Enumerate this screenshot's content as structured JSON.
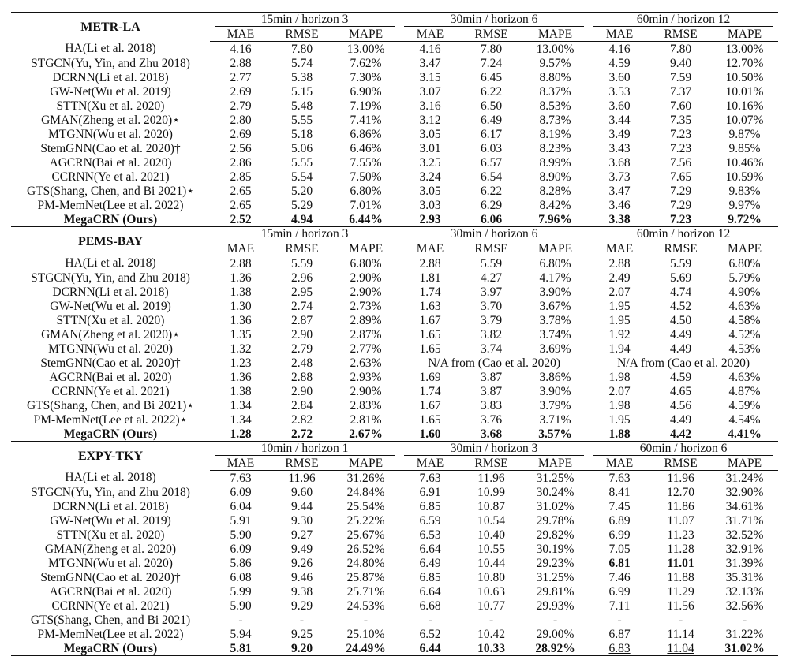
{
  "columns": [
    "MAE",
    "RMSE",
    "MAPE"
  ],
  "sections": [
    {
      "dataset": "METR-LA",
      "horizons": [
        "15min / horizon 3",
        "30min / horizon 6",
        "60min / horizon 12"
      ],
      "rows": [
        {
          "method": "HA(Li et al. 2018)",
          "values": [
            "4.16",
            "7.80",
            "13.00%",
            "4.16",
            "7.80",
            "13.00%",
            "4.16",
            "7.80",
            "13.00%"
          ]
        },
        {
          "method": "STGCN(Yu, Yin, and Zhu 2018)",
          "values": [
            "2.88",
            "5.74",
            "7.62%",
            "3.47",
            "7.24",
            "9.57%",
            "4.59",
            "9.40",
            "12.70%"
          ]
        },
        {
          "method": "DCRNN(Li et al. 2018)",
          "values": [
            "2.77",
            "5.38",
            "7.30%",
            "3.15",
            "6.45",
            "8.80%",
            "3.60",
            "7.59",
            "10.50%"
          ]
        },
        {
          "method": "GW-Net(Wu et al. 2019)",
          "values": [
            "2.69",
            "5.15",
            "6.90%",
            "3.07",
            "6.22",
            "8.37%",
            "3.53",
            "7.37",
            "10.01%"
          ]
        },
        {
          "method": "STTN(Xu et al. 2020)",
          "values": [
            "2.79",
            "5.48",
            "7.19%",
            "3.16",
            "6.50",
            "8.53%",
            "3.60",
            "7.60",
            "10.16%"
          ]
        },
        {
          "method": "GMAN(Zheng et al. 2020)⋆",
          "values": [
            "2.80",
            "5.55",
            "7.41%",
            "3.12",
            "6.49",
            "8.73%",
            "3.44",
            "7.35",
            "10.07%"
          ]
        },
        {
          "method": "MTGNN(Wu et al. 2020)",
          "values": [
            "2.69",
            "5.18",
            "6.86%",
            "3.05",
            "6.17",
            "8.19%",
            "3.49",
            "7.23",
            "9.87%"
          ]
        },
        {
          "method": "StemGNN(Cao et al. 2020)†",
          "values": [
            "2.56",
            "5.06",
            "6.46%",
            "3.01",
            "6.03",
            "8.23%",
            "3.43",
            "7.23",
            "9.85%"
          ]
        },
        {
          "method": "AGCRN(Bai et al. 2020)",
          "values": [
            "2.86",
            "5.55",
            "7.55%",
            "3.25",
            "6.57",
            "8.99%",
            "3.68",
            "7.56",
            "10.46%"
          ]
        },
        {
          "method": "CCRNN(Ye et al. 2021)",
          "values": [
            "2.85",
            "5.54",
            "7.50%",
            "3.24",
            "6.54",
            "8.90%",
            "3.73",
            "7.65",
            "10.59%"
          ]
        },
        {
          "method": "GTS(Shang, Chen, and Bi 2021)⋆",
          "values": [
            "2.65",
            "5.20",
            "6.80%",
            "3.05",
            "6.22",
            "8.28%",
            "3.47",
            "7.29",
            "9.83%"
          ]
        },
        {
          "method": "PM-MemNet(Lee et al. 2022)",
          "values": [
            "2.65",
            "5.29",
            "7.01%",
            "3.03",
            "6.29",
            "8.42%",
            "3.46",
            "7.29",
            "9.97%"
          ]
        },
        {
          "method": "MegaCRN (Ours)",
          "values": [
            "2.52",
            "4.94",
            "6.44%",
            "2.93",
            "6.06",
            "7.96%",
            "3.38",
            "7.23",
            "9.72%"
          ]
        }
      ]
    },
    {
      "dataset": "PEMS-BAY",
      "horizons": [
        "15min / horizon 3",
        "30min / horizon 6",
        "60min / horizon 12"
      ],
      "rows": [
        {
          "method": "HA(Li et al. 2018)",
          "values": [
            "2.88",
            "5.59",
            "6.80%",
            "2.88",
            "5.59",
            "6.80%",
            "2.88",
            "5.59",
            "6.80%"
          ]
        },
        {
          "method": "STGCN(Yu, Yin, and Zhu 2018)",
          "values": [
            "1.36",
            "2.96",
            "2.90%",
            "1.81",
            "4.27",
            "4.17%",
            "2.49",
            "5.69",
            "5.79%"
          ]
        },
        {
          "method": "DCRNN(Li et al. 2018)",
          "values": [
            "1.38",
            "2.95",
            "2.90%",
            "1.74",
            "3.97",
            "3.90%",
            "2.07",
            "4.74",
            "4.90%"
          ]
        },
        {
          "method": "GW-Net(Wu et al. 2019)",
          "values": [
            "1.30",
            "2.74",
            "2.73%",
            "1.63",
            "3.70",
            "3.67%",
            "1.95",
            "4.52",
            "4.63%"
          ]
        },
        {
          "method": "STTN(Xu et al. 2020)",
          "values": [
            "1.36",
            "2.87",
            "2.89%",
            "1.67",
            "3.79",
            "3.78%",
            "1.95",
            "4.50",
            "4.58%"
          ]
        },
        {
          "method": "GMAN(Zheng et al. 2020)⋆",
          "values": [
            "1.35",
            "2.90",
            "2.87%",
            "1.65",
            "3.82",
            "3.74%",
            "1.92",
            "4.49",
            "4.52%"
          ]
        },
        {
          "method": "MTGNN(Wu et al. 2020)",
          "values": [
            "1.32",
            "2.79",
            "2.77%",
            "1.65",
            "3.74",
            "3.69%",
            "1.94",
            "4.49",
            "4.53%"
          ]
        },
        {
          "method": "StemGNN(Cao et al. 2020)†",
          "values": [
            "1.23",
            "2.48",
            "2.63%"
          ],
          "na": [
            "N/A from (Cao et al. 2020)",
            "N/A from (Cao et al. 2020)"
          ]
        },
        {
          "method": "AGCRN(Bai et al. 2020)",
          "values": [
            "1.36",
            "2.88",
            "2.93%",
            "1.69",
            "3.87",
            "3.86%",
            "1.98",
            "4.59",
            "4.63%"
          ]
        },
        {
          "method": "CCRNN(Ye et al. 2021)",
          "values": [
            "1.38",
            "2.90",
            "2.90%",
            "1.74",
            "3.87",
            "3.90%",
            "2.07",
            "4.65",
            "4.87%"
          ]
        },
        {
          "method": "GTS(Shang, Chen, and Bi 2021)⋆",
          "values": [
            "1.34",
            "2.84",
            "2.83%",
            "1.67",
            "3.83",
            "3.79%",
            "1.98",
            "4.56",
            "4.59%"
          ]
        },
        {
          "method": "PM-MemNet(Lee et al. 2022)⋆",
          "values": [
            "1.34",
            "2.82",
            "2.81%",
            "1.65",
            "3.76",
            "3.71%",
            "1.95",
            "4.49",
            "4.54%"
          ]
        },
        {
          "method": "MegaCRN (Ours)",
          "values": [
            "1.28",
            "2.72",
            "2.67%",
            "1.60",
            "3.68",
            "3.57%",
            "1.88",
            "4.42",
            "4.41%"
          ]
        }
      ]
    },
    {
      "dataset": "EXPY-TKY",
      "horizons": [
        "10min / horizon 1",
        "30min / horizon 3",
        "60min / horizon 6"
      ],
      "rows": [
        {
          "method": "HA(Li et al. 2018)",
          "values": [
            "7.63",
            "11.96",
            "31.26%",
            "7.63",
            "11.96",
            "31.25%",
            "7.63",
            "11.96",
            "31.24%"
          ]
        },
        {
          "method": "STGCN(Yu, Yin, and Zhu 2018)",
          "values": [
            "6.09",
            "9.60",
            "24.84%",
            "6.91",
            "10.99",
            "30.24%",
            "8.41",
            "12.70",
            "32.90%"
          ]
        },
        {
          "method": "DCRNN(Li et al. 2018)",
          "values": [
            "6.04",
            "9.44",
            "25.54%",
            "6.85",
            "10.87",
            "31.02%",
            "7.45",
            "11.86",
            "34.61%"
          ]
        },
        {
          "method": "GW-Net(Wu et al. 2019)",
          "values": [
            "5.91",
            "9.30",
            "25.22%",
            "6.59",
            "10.54",
            "29.78%",
            "6.89",
            "11.07",
            "31.71%"
          ]
        },
        {
          "method": "STTN(Xu et al. 2020)",
          "values": [
            "5.90",
            "9.27",
            "25.67%",
            "6.53",
            "10.40",
            "29.82%",
            "6.99",
            "11.23",
            "32.52%"
          ]
        },
        {
          "method": "GMAN(Zheng et al. 2020)",
          "values": [
            "6.09",
            "9.49",
            "26.52%",
            "6.64",
            "10.55",
            "30.19%",
            "7.05",
            "11.28",
            "32.91%"
          ]
        },
        {
          "method": "MTGNN(Wu et al. 2020)",
          "values": [
            "5.86",
            "9.26",
            "24.80%",
            "6.49",
            "10.44",
            "29.23%",
            "6.81",
            "11.01",
            "31.39%"
          ],
          "bold": [
            6,
            7
          ]
        },
        {
          "method": "StemGNN(Cao et al. 2020)†",
          "values": [
            "6.08",
            "9.46",
            "25.87%",
            "6.85",
            "10.80",
            "31.25%",
            "7.46",
            "11.88",
            "35.31%"
          ]
        },
        {
          "method": "AGCRN(Bai et al. 2020)",
          "values": [
            "5.99",
            "9.38",
            "25.71%",
            "6.64",
            "10.63",
            "29.81%",
            "6.99",
            "11.29",
            "32.13%"
          ]
        },
        {
          "method": "CCRNN(Ye et al. 2021)",
          "values": [
            "5.90",
            "9.29",
            "24.53%",
            "6.68",
            "10.77",
            "29.93%",
            "7.11",
            "11.56",
            "32.56%"
          ]
        },
        {
          "method": "GTS(Shang, Chen, and Bi 2021)",
          "values": [
            "-",
            "-",
            "-",
            "-",
            "-",
            "-",
            "-",
            "-",
            "-"
          ]
        },
        {
          "method": "PM-MemNet(Lee et al. 2022)",
          "values": [
            "5.94",
            "9.25",
            "25.10%",
            "6.52",
            "10.42",
            "29.00%",
            "6.87",
            "11.14",
            "31.22%"
          ]
        },
        {
          "method": "MegaCRN (Ours)",
          "values": [
            "5.81",
            "9.20",
            "24.49%",
            "6.44",
            "10.33",
            "28.92%",
            "6.83",
            "11.04",
            "31.02%"
          ],
          "allbold": true,
          "underline": [
            6,
            7
          ]
        }
      ]
    }
  ]
}
